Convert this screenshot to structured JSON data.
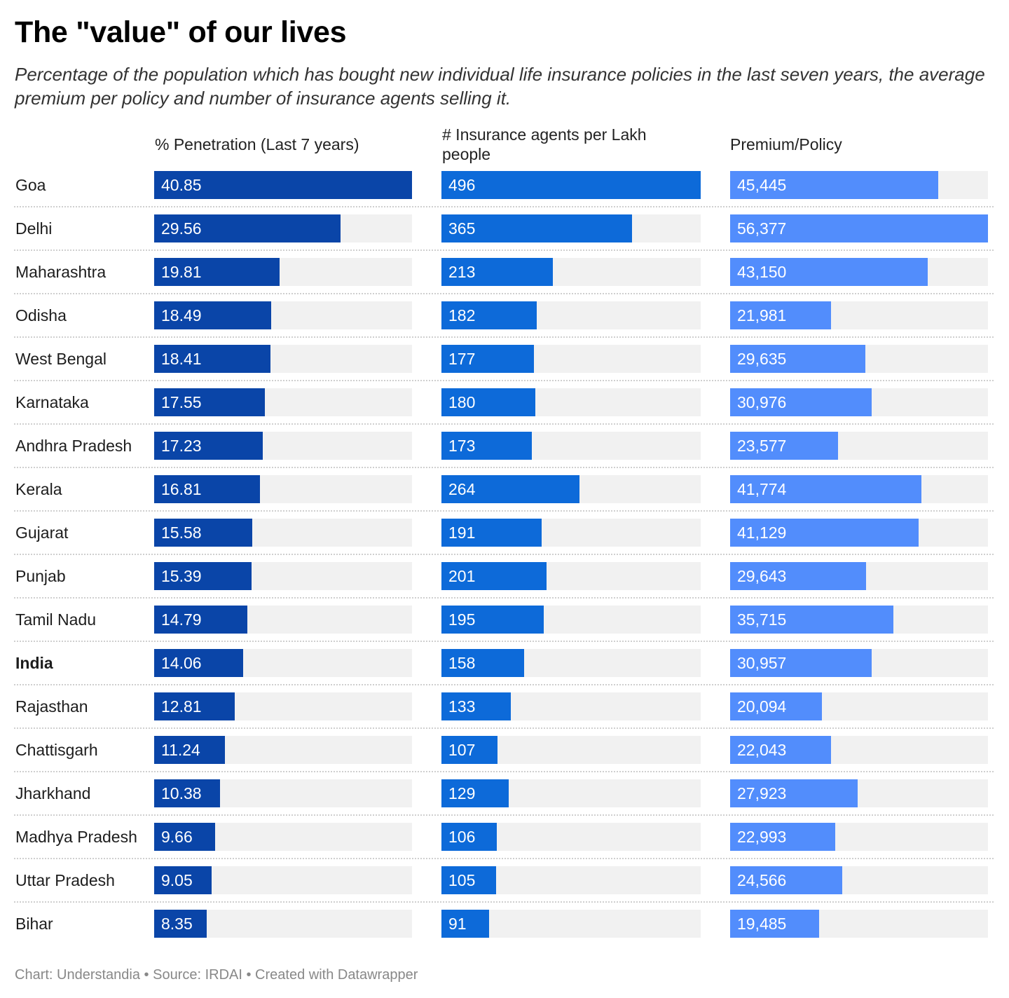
{
  "title": "The \"value\" of our lives",
  "subtitle": "Percentage of the population which has bought new individual life insurance policies in the last seven years, the average premium per policy and number of insurance agents selling it.",
  "columns": [
    {
      "label": "% Penetration (Last 7 years)",
      "color": "#0a45a8",
      "max": 40.85
    },
    {
      "label": "# Insurance agents per Lakh people",
      "color": "#0d6ad9",
      "max": 496
    },
    {
      "label": "Premium/Policy",
      "color": "#528dfc",
      "max": 56377
    }
  ],
  "footer": "Chart: Understandia • Source: IRDAI • Created with Datawrapper",
  "chart_data": {
    "type": "bar",
    "title": "The \"value\" of our lives",
    "categories": [
      "Goa",
      "Delhi",
      "Maharashtra",
      "Odisha",
      "West Bengal",
      "Karnataka",
      "Andhra Pradesh",
      "Kerala",
      "Gujarat",
      "Punjab",
      "Tamil Nadu",
      "India",
      "Rajasthan",
      "Chattisgarh",
      "Jharkhand",
      "Madhya Pradesh",
      "Uttar Pradesh",
      "Bihar"
    ],
    "highlight": "India",
    "series": [
      {
        "name": "% Penetration (Last 7 years)",
        "values": [
          40.85,
          29.56,
          19.81,
          18.49,
          18.41,
          17.55,
          17.23,
          16.81,
          15.58,
          15.39,
          14.79,
          14.06,
          12.81,
          11.24,
          10.38,
          9.66,
          9.05,
          8.35
        ],
        "labels": [
          "40.85",
          "29.56",
          "19.81",
          "18.49",
          "18.41",
          "17.55",
          "17.23",
          "16.81",
          "15.58",
          "15.39",
          "14.79",
          "14.06",
          "12.81",
          "11.24",
          "10.38",
          "9.66",
          "9.05",
          "8.35"
        ]
      },
      {
        "name": "# Insurance agents per Lakh people",
        "values": [
          496,
          365,
          213,
          182,
          177,
          180,
          173,
          264,
          191,
          201,
          195,
          158,
          133,
          107,
          129,
          106,
          105,
          91
        ],
        "labels": [
          "496",
          "365",
          "213",
          "182",
          "177",
          "180",
          "173",
          "264",
          "191",
          "201",
          "195",
          "158",
          "133",
          "107",
          "129",
          "106",
          "105",
          "91"
        ]
      },
      {
        "name": "Premium/Policy",
        "values": [
          45445,
          56377,
          43150,
          21981,
          29635,
          30976,
          23577,
          41774,
          41129,
          29643,
          35715,
          30957,
          20094,
          22043,
          27923,
          22993,
          24566,
          19485
        ],
        "labels": [
          "45,445",
          "56,377",
          "43,150",
          "21,981",
          "29,635",
          "30,976",
          "23,577",
          "41,774",
          "41,129",
          "29,643",
          "35,715",
          "30,957",
          "20,094",
          "22,043",
          "27,923",
          "22,993",
          "24,566",
          "19,485"
        ]
      }
    ]
  }
}
